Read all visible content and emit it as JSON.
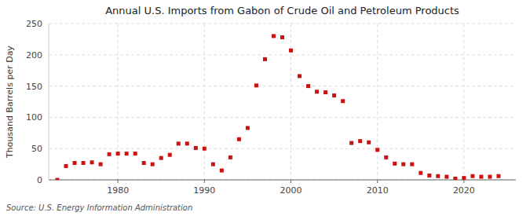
{
  "chart_data": {
    "type": "scatter",
    "title": "Annual U.S. Imports from Gabon of Crude Oil and Petroleum Products",
    "ylabel": "Thousand Barrels per Day",
    "annotations": [
      "Source: U.S. Energy Information Administration"
    ],
    "color": "#cc1111",
    "marker": "square",
    "grid": true,
    "xlim": [
      1972,
      2026
    ],
    "ylim": [
      0,
      250
    ],
    "xticks": [
      1980,
      1990,
      2000,
      2010,
      2020
    ],
    "yticks": [
      0,
      50,
      100,
      150,
      200,
      250
    ],
    "x": [
      1973,
      1974,
      1975,
      1976,
      1977,
      1978,
      1979,
      1980,
      1981,
      1982,
      1983,
      1984,
      1985,
      1986,
      1987,
      1988,
      1989,
      1990,
      1991,
      1992,
      1993,
      1994,
      1995,
      1996,
      1997,
      1998,
      1999,
      2000,
      2001,
      2002,
      2003,
      2004,
      2005,
      2006,
      2007,
      2008,
      2009,
      2010,
      2011,
      2012,
      2013,
      2014,
      2015,
      2016,
      2017,
      2018,
      2019,
      2020,
      2021,
      2022,
      2023,
      2024
    ],
    "values": [
      0,
      22,
      27,
      27,
      28,
      25,
      41,
      42,
      42,
      42,
      27,
      25,
      35,
      40,
      58,
      58,
      51,
      50,
      25,
      15,
      36,
      65,
      83,
      151,
      193,
      230,
      228,
      207,
      166,
      150,
      141,
      140,
      135,
      126,
      59,
      62,
      60,
      48,
      36,
      26,
      25,
      25,
      11,
      7,
      6,
      5,
      2,
      3,
      6,
      5,
      5,
      6
    ]
  }
}
